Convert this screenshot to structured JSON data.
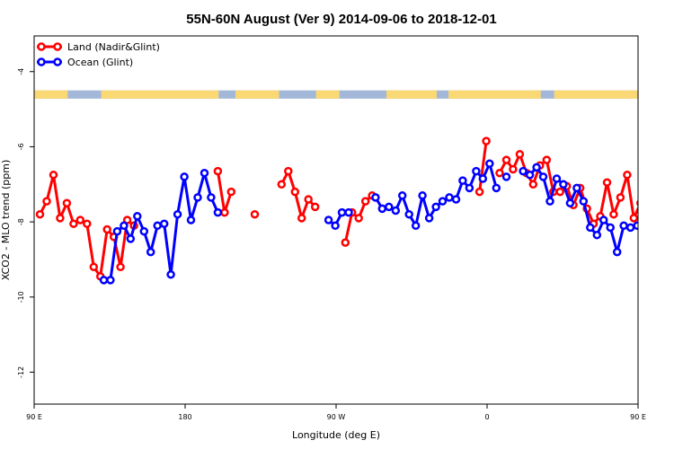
{
  "chart_data": {
    "type": "line",
    "title": "55N-60N August (Ver 9)   2014-09-06 to 2018-12-01",
    "xlabel": "Longitude (deg E)",
    "ylabel": "XCO2 - MLO trend (ppm)",
    "xlim": [
      90,
      450
    ],
    "ylim": [
      -12.85,
      -3.05
    ],
    "x_ticks": [
      {
        "value": 90,
        "label": "90 E"
      },
      {
        "value": 180,
        "label": "180"
      },
      {
        "value": 270,
        "label": "90 W"
      },
      {
        "value": 360,
        "label": "0"
      },
      {
        "value": 450,
        "label": "90 E"
      },
      {
        "value": 540,
        "label": "180"
      }
    ],
    "y_ticks": [
      {
        "value": -4,
        "label": "-4"
      },
      {
        "value": -6,
        "label": "-6"
      },
      {
        "value": -8,
        "label": "-8"
      },
      {
        "value": -10,
        "label": "-10"
      },
      {
        "value": -12,
        "label": "-12"
      }
    ],
    "legend_position": "top-left",
    "colors": {
      "land": "#ff0000",
      "ocean": "#0000ff",
      "band_land": "#fad874",
      "band_ocean": "#a3b8d8"
    },
    "series": [
      {
        "name": "Land (Nadir&Glint)",
        "color": "#ff0000",
        "points": [
          [
            93.5,
            -7.8
          ],
          [
            97.5,
            -7.45
          ],
          [
            101.5,
            -6.75
          ],
          [
            105.5,
            -7.9
          ],
          [
            109.5,
            -7.5
          ],
          [
            113.5,
            -8.05
          ],
          [
            117.5,
            -7.95
          ],
          [
            121.5,
            -8.05
          ],
          [
            125.5,
            -9.2
          ],
          [
            129.5,
            -9.45
          ],
          [
            133.5,
            -8.2
          ],
          [
            137.5,
            -8.4
          ],
          [
            141.5,
            -9.2
          ],
          [
            145.5,
            -7.95
          ],
          [
            149.5,
            -8.1
          ],
          null,
          [
            199.5,
            -6.65
          ],
          [
            203.5,
            -7.75
          ],
          [
            207.5,
            -7.2
          ],
          null,
          [
            221.5,
            -7.8
          ],
          null,
          [
            237.5,
            -7.0
          ],
          [
            241.5,
            -6.65
          ],
          [
            245.5,
            -7.2
          ],
          [
            249.5,
            -7.9
          ],
          [
            253.5,
            -7.4
          ],
          [
            257.5,
            -7.6
          ],
          null,
          [
            275.5,
            -8.55
          ],
          [
            279.5,
            -7.75
          ],
          [
            283.5,
            -7.9
          ],
          [
            287.5,
            -7.45
          ],
          [
            291.5,
            -7.3
          ],
          null,
          [
            355.5,
            -7.2
          ],
          [
            359.5,
            -5.85
          ],
          null,
          [
            367.5,
            -6.7
          ],
          [
            371.5,
            -6.35
          ],
          [
            375.5,
            -6.6
          ],
          [
            379.5,
            -6.2
          ],
          [
            383.5,
            -6.7
          ],
          [
            387.5,
            -7.0
          ],
          [
            391.5,
            -6.5
          ],
          [
            395.5,
            -6.35
          ],
          [
            399.5,
            -7.2
          ],
          [
            403.5,
            -7.2
          ],
          [
            407.5,
            -7.05
          ],
          [
            411.5,
            -7.55
          ],
          [
            415.5,
            -7.1
          ],
          [
            419.5,
            -7.65
          ],
          [
            423.5,
            -8.05
          ],
          [
            427.5,
            -7.85
          ],
          [
            431.5,
            -6.95
          ],
          [
            435.5,
            -7.8
          ],
          [
            439.5,
            -7.35
          ],
          [
            443.5,
            -6.75
          ],
          [
            447.5,
            -7.9
          ],
          [
            451.5,
            -7.5
          ],
          [
            455.5,
            -8.05
          ],
          [
            459.5,
            -7.9
          ],
          [
            463.5,
            -8.0
          ],
          [
            467.5,
            -9.2
          ],
          [
            471.5,
            -9.45
          ],
          [
            475.5,
            -8.2
          ],
          [
            479.5,
            -8.4
          ],
          [
            483.5,
            -9.2
          ],
          [
            487.5,
            -7.95
          ],
          [
            491.5,
            -8.1
          ]
        ]
      },
      {
        "name": "Ocean (Glint)",
        "color": "#0000ff",
        "points": [
          [
            131.5,
            -9.55
          ],
          [
            135.5,
            -9.55
          ],
          [
            139.5,
            -8.25
          ],
          [
            143.5,
            -8.1
          ],
          [
            147.5,
            -8.45
          ],
          [
            151.5,
            -7.85
          ],
          [
            155.5,
            -8.25
          ],
          [
            159.5,
            -8.8
          ],
          [
            163.5,
            -8.1
          ],
          [
            167.5,
            -8.05
          ],
          [
            171.5,
            -9.4
          ],
          [
            175.5,
            -7.8
          ],
          [
            179.5,
            -6.8
          ],
          [
            183.5,
            -7.95
          ],
          [
            187.5,
            -7.35
          ],
          [
            191.5,
            -6.7
          ],
          [
            195.5,
            -7.35
          ],
          [
            199.5,
            -7.75
          ],
          null,
          [
            265.5,
            -7.95
          ],
          [
            269.5,
            -8.1
          ],
          [
            273.5,
            -7.75
          ],
          [
            277.5,
            -7.75
          ],
          null,
          [
            293.5,
            -7.35
          ],
          [
            297.5,
            -7.65
          ],
          [
            301.5,
            -7.6
          ],
          [
            305.5,
            -7.7
          ],
          [
            309.5,
            -7.3
          ],
          [
            313.5,
            -7.8
          ],
          [
            317.5,
            -8.1
          ],
          [
            321.5,
            -7.3
          ],
          [
            325.5,
            -7.9
          ],
          [
            329.5,
            -7.6
          ],
          [
            333.5,
            -7.45
          ],
          [
            337.5,
            -7.35
          ],
          [
            341.5,
            -7.4
          ],
          [
            345.5,
            -6.9
          ],
          [
            349.5,
            -7.1
          ],
          [
            353.5,
            -6.65
          ],
          [
            357.5,
            -6.85
          ],
          [
            361.5,
            -6.45
          ],
          [
            365.5,
            -7.1
          ],
          null,
          [
            371.5,
            -6.8
          ],
          null,
          [
            381.5,
            -6.65
          ],
          [
            385.5,
            -6.75
          ],
          [
            389.5,
            -6.55
          ],
          [
            393.5,
            -6.8
          ],
          [
            397.5,
            -7.45
          ],
          [
            401.5,
            -6.85
          ],
          [
            405.5,
            -7.0
          ],
          [
            409.5,
            -7.5
          ],
          [
            413.5,
            -7.1
          ],
          [
            417.5,
            -7.45
          ],
          [
            421.5,
            -8.15
          ],
          [
            425.5,
            -8.35
          ],
          [
            429.5,
            -7.95
          ],
          [
            433.5,
            -8.15
          ],
          [
            437.5,
            -8.8
          ],
          [
            441.5,
            -8.1
          ],
          [
            445.5,
            -8.15
          ],
          [
            449.5,
            -8.1
          ]
        ]
      }
    ],
    "top_band": {
      "y_range": [
        -4.5,
        -4.72
      ],
      "land_intervals": [
        [
          90,
          110
        ],
        [
          130,
          200
        ],
        [
          210,
          236
        ],
        [
          258,
          272
        ],
        [
          300,
          330
        ],
        [
          337,
          392
        ],
        [
          400,
          450
        ]
      ]
    }
  }
}
